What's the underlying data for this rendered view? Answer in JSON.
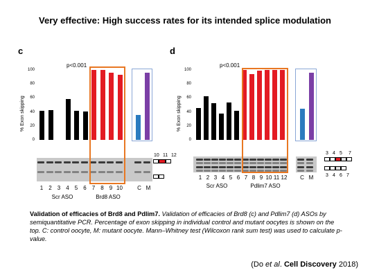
{
  "slide_title": "Very effective: High success rates for its intended splice modulation",
  "panels": [
    {
      "letter": "c",
      "pvalue": "p<0.001",
      "ylabel": "% Exon skipping",
      "yticks": [
        "100",
        "80",
        "60",
        "40",
        "20",
        "0"
      ],
      "lane_labels": [
        "1",
        "2",
        "3",
        "4",
        "5",
        "6",
        "7",
        "8",
        "9",
        "10",
        "C",
        "M"
      ],
      "group_labels": [
        "Scr ASO",
        "Brd8 ASO"
      ],
      "exon_labels_top": [
        "10",
        "11",
        "12"
      ],
      "exon_labels_bottom": [],
      "chart_data": {
        "type": "bar",
        "categories": [
          "1",
          "2",
          "3",
          "4",
          "5",
          "6",
          "7",
          "8",
          "9",
          "10",
          "C",
          "M"
        ],
        "values": [
          42,
          43,
          0,
          58,
          42,
          41,
          100,
          100,
          96,
          93,
          36,
          96
        ],
        "ylabel": "% Exon skipping",
        "ylim": [
          0,
          100
        ],
        "colors": {
          "scr": "#000000",
          "aso": "#e31b23",
          "control": "#2b7bbf",
          "mutant": "#7b3fa6"
        }
      }
    },
    {
      "letter": "d",
      "pvalue": "p<0.001",
      "ylabel": "% Exon skipping",
      "yticks": [
        "100",
        "80",
        "60",
        "40",
        "20",
        "0"
      ],
      "lane_labels": [
        "1",
        "2",
        "3",
        "4",
        "5",
        "6",
        "7",
        "8",
        "9",
        "10",
        "11",
        "12",
        "C",
        "M"
      ],
      "group_labels": [
        "Scr ASO",
        "Pdlim7 ASO"
      ],
      "exon_labels_top": [
        "3",
        "4",
        "5",
        "7"
      ],
      "exon_labels_bottom": [
        "3",
        "4",
        "6",
        "7"
      ],
      "chart_data": {
        "type": "bar",
        "categories": [
          "1",
          "2",
          "3",
          "4",
          "5",
          "6",
          "7",
          "8",
          "9",
          "10",
          "11",
          "12",
          "C",
          "M"
        ],
        "values": [
          46,
          62,
          52,
          38,
          53,
          42,
          100,
          94,
          99,
          100,
          100,
          100,
          45,
          96
        ],
        "ylabel": "% Exon skipping",
        "ylim": [
          0,
          100
        ],
        "colors": {
          "scr": "#000000",
          "aso": "#e31b23",
          "control": "#2b7bbf",
          "mutant": "#7b3fa6"
        }
      }
    }
  ],
  "caption": {
    "bold": "Validation of efficacies of Brd8 and Pdlim7.",
    "italic": " Validation of efficacies of Brd8 (c) and Pdlim7 (d) ASOs by semiquantitative PCR. Percentage of exon skipping in individual control and mutant oocytes is shown on the top. C: control oocyte, M: mutant oocyte. Mann–Whitney test (Wilcoxon rank sum test) was used to calculate p-value."
  },
  "citation": {
    "open": "(Do ",
    "etal": "et al",
    "dot": ". ",
    "journal": "Cell Discovery",
    "year": " 2018)"
  }
}
